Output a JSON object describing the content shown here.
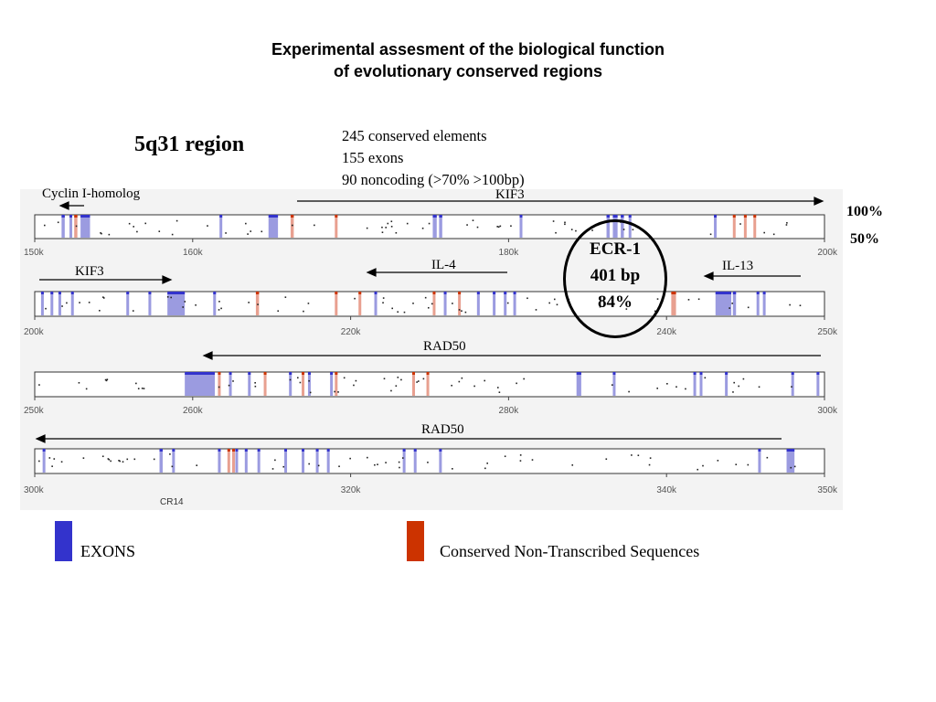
{
  "title_lines": [
    "Experimental assesment of the biological function",
    "of  evolutionary conserved regions"
  ],
  "region_label": "5q31 region",
  "stats": [
    "245 conserved elements",
    "155 exons",
    "90 noncoding (>70% >100bp)"
  ],
  "gene_labels": {
    "cyclin": "Cyclin I-homolog",
    "kif3_top": "KIF3",
    "kif3_second": "KIF3",
    "il4": "IL-4",
    "il13": "IL-13",
    "rad50_a": "RAD50",
    "rad50_b": "RAD50"
  },
  "percent_scale": {
    "high": "100%",
    "low": "50%"
  },
  "ecr": {
    "name": "ECR-1",
    "size": "401 bp",
    "identity": "84%"
  },
  "cr14_label": "CR14",
  "colors": {
    "exon": "#3333cc",
    "cns": "#cc3300",
    "exon_track": "#9b9be0",
    "cns_track": "#e8a090",
    "axis": "#555555"
  },
  "legend": {
    "exons": {
      "label": "EXONS",
      "color": "#3333cc"
    },
    "cns": {
      "label": "Conserved Non-Transcribed Sequences",
      "color": "#cc3300"
    }
  },
  "chart_data": {
    "type": "conservation-track",
    "x_unit": "kb",
    "rows": [
      {
        "range": [
          150,
          200
        ],
        "ticks": [
          {
            "label": "150k",
            "kb": 150
          },
          {
            "label": "160k",
            "kb": 160
          },
          {
            "label": "180k",
            "kb": 180
          },
          {
            "label": "200k",
            "kb": 200
          }
        ],
        "exons": [
          [
            151.7,
            0.2
          ],
          [
            152.2,
            0.15
          ],
          [
            152.9,
            0.6
          ],
          [
            161.7,
            0.15
          ],
          [
            164.8,
            0.6
          ],
          [
            175.2,
            0.25
          ],
          [
            175.6,
            0.2
          ],
          [
            180.7,
            0.15
          ],
          [
            186.2,
            0.2
          ],
          [
            186.6,
            0.3
          ],
          [
            187.1,
            0.2
          ],
          [
            187.6,
            0.15
          ],
          [
            193.0,
            0.15
          ]
        ],
        "cns": [
          [
            152.5,
            0.2
          ],
          [
            166.2,
            0.2
          ],
          [
            169.0,
            0.15
          ],
          [
            194.2,
            0.15
          ],
          [
            194.9,
            0.15
          ],
          [
            195.5,
            0.15
          ]
        ]
      },
      {
        "range": [
          200,
          250
        ],
        "ticks": [
          {
            "label": "200k",
            "kb": 200
          },
          {
            "label": "220k",
            "kb": 220
          },
          {
            "label": "240k",
            "kb": 240
          },
          {
            "label": "250k",
            "kb": 250
          }
        ],
        "exons": [
          [
            200.4,
            0.15
          ],
          [
            201.0,
            0.15
          ],
          [
            201.5,
            0.15
          ],
          [
            202.3,
            0.15
          ],
          [
            205.8,
            0.15
          ],
          [
            207.2,
            0.15
          ],
          [
            208.4,
            1.1
          ],
          [
            211.3,
            0.15
          ],
          [
            221.5,
            0.15
          ],
          [
            225.9,
            0.15
          ],
          [
            228.0,
            0.15
          ],
          [
            229.0,
            0.15
          ],
          [
            229.7,
            0.15
          ],
          [
            230.3,
            0.15
          ],
          [
            243.1,
            1.0
          ],
          [
            244.2,
            0.2
          ],
          [
            245.7,
            0.15
          ],
          [
            246.1,
            0.15
          ]
        ],
        "cns": [
          [
            214.0,
            0.2
          ],
          [
            219.0,
            0.15
          ],
          [
            220.5,
            0.15
          ],
          [
            225.2,
            0.15
          ],
          [
            226.8,
            0.15
          ],
          [
            240.3,
            0.3
          ]
        ]
      },
      {
        "range": [
          250,
          300
        ],
        "ticks": [
          {
            "label": "250k",
            "kb": 250
          },
          {
            "label": "260k",
            "kb": 260
          },
          {
            "label": "280k",
            "kb": 280
          },
          {
            "label": "300k",
            "kb": 300
          }
        ],
        "exons": [
          [
            259.5,
            1.9
          ],
          [
            262.3,
            0.15
          ],
          [
            263.5,
            0.15
          ],
          [
            266.1,
            0.15
          ],
          [
            267.3,
            0.15
          ],
          [
            268.7,
            0.15
          ],
          [
            284.3,
            0.3
          ],
          [
            286.6,
            0.15
          ],
          [
            291.7,
            0.15
          ],
          [
            292.1,
            0.15
          ],
          [
            293.7,
            0.15
          ],
          [
            297.9,
            0.15
          ],
          [
            299.5,
            0.15
          ]
        ],
        "cns": [
          [
            261.6,
            0.15
          ],
          [
            264.5,
            0.15
          ],
          [
            266.9,
            0.15
          ],
          [
            269.0,
            0.15
          ],
          [
            273.9,
            0.15
          ],
          [
            274.8,
            0.15
          ]
        ]
      },
      {
        "range": [
          300,
          350
        ],
        "ticks": [
          {
            "label": "300k",
            "kb": 300
          },
          {
            "label": "320k",
            "kb": 320
          },
          {
            "label": "340k",
            "kb": 340
          },
          {
            "label": "350k",
            "kb": 350
          }
        ],
        "exons": [
          [
            300.5,
            0.15
          ],
          [
            307.9,
            0.2
          ],
          [
            308.7,
            0.15
          ],
          [
            311.6,
            0.15
          ],
          [
            312.7,
            0.15
          ],
          [
            313.3,
            0.15
          ],
          [
            314.1,
            0.15
          ],
          [
            315.8,
            0.15
          ],
          [
            316.9,
            0.15
          ],
          [
            317.8,
            0.15
          ],
          [
            318.5,
            0.15
          ],
          [
            323.3,
            0.15
          ],
          [
            324.0,
            0.15
          ],
          [
            325.6,
            0.15
          ],
          [
            345.8,
            0.15
          ],
          [
            347.6,
            0.5
          ]
        ],
        "cns": [
          [
            312.2,
            0.15
          ],
          [
            312.5,
            0.15
          ]
        ]
      }
    ]
  }
}
